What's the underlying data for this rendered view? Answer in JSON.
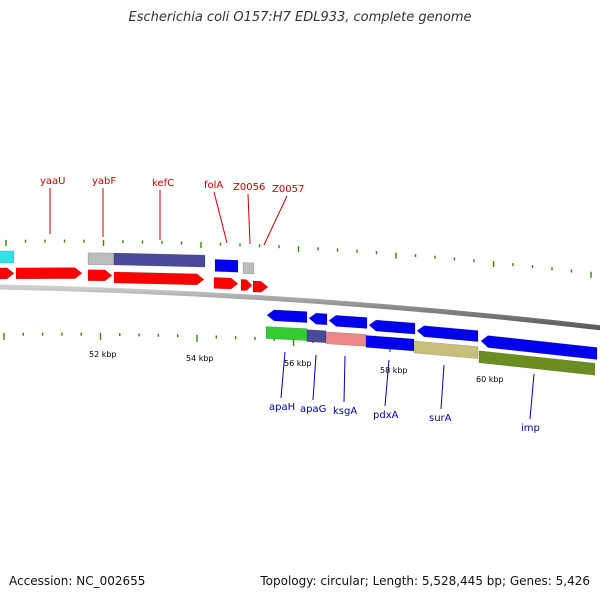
{
  "title": "Escherichia coli O157:H7 EDL933, complete genome",
  "footer": {
    "accession": "Accession: NC_002655",
    "summary": "Topology: circular; Length: 5,528,445 bp; Genes: 5,426"
  },
  "colors": {
    "backbone": "#888888",
    "tick": "#2e8b00",
    "forward_label": "#cc0000",
    "reverse_label": "#0000bb",
    "cds_forward": "#ff0000",
    "cds_reverse": "#0000ee"
  },
  "kbp_labels": [
    "52 kbp",
    "54 kbp",
    "56 kbp",
    "58 kbp",
    "60 kbp"
  ],
  "forward_genes": [
    {
      "name": "yaaU"
    },
    {
      "name": "yabF"
    },
    {
      "name": "kefC"
    },
    {
      "name": "folA"
    },
    {
      "name": "Z0056"
    },
    {
      "name": "Z0057"
    }
  ],
  "reverse_genes": [
    {
      "name": "apaH"
    },
    {
      "name": "apaG"
    },
    {
      "name": "ksgA"
    },
    {
      "name": "pdxA"
    },
    {
      "name": "surA"
    },
    {
      "name": "imp"
    }
  ],
  "cog_colors": {
    "cyan": "#33e0e8",
    "grey": "#bbbbbb",
    "slate": "#4a4a9a",
    "blue": "#0000ee",
    "green": "#33cc33",
    "pink": "#ee8888",
    "khaki": "#c8c07a",
    "olive": "#6b8e23"
  }
}
